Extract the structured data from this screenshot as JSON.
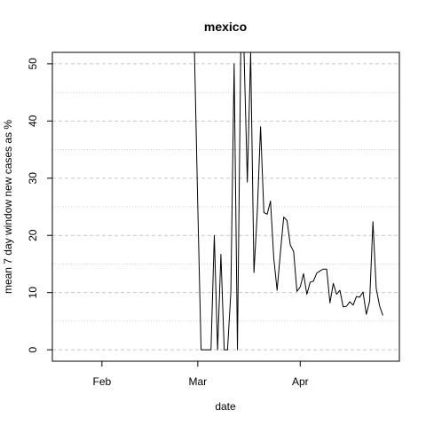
{
  "chart_data": {
    "type": "line",
    "title": "mexico",
    "xlabel": "date",
    "ylabel": "mean  7  day window new cases as %",
    "x_ticks": [
      "2020-02-01",
      "2020-03-01",
      "2020-04-01"
    ],
    "x_tick_labels": [
      "Feb",
      "Mar",
      "Apr"
    ],
    "xlim": [
      "2020-01-17",
      "2020-05-01"
    ],
    "y_ticks": [
      0,
      10,
      20,
      30,
      40,
      50
    ],
    "ylim": [
      -2,
      52
    ],
    "grid": {
      "major": "dashed",
      "minor": "dotted"
    },
    "series": [
      {
        "color": "#000000",
        "points": [
          {
            "x": "2020-02-29",
            "y": 52
          },
          {
            "x": "2020-03-01",
            "y": 25
          },
          {
            "x": "2020-03-02",
            "y": 0
          },
          {
            "x": "2020-03-03",
            "y": 0
          },
          {
            "x": "2020-03-04",
            "y": 0
          },
          {
            "x": "2020-03-05",
            "y": 0
          },
          {
            "x": "2020-03-06",
            "y": 20
          },
          {
            "x": "2020-03-07",
            "y": 0
          },
          {
            "x": "2020-03-08",
            "y": 16.7
          },
          {
            "x": "2020-03-09",
            "y": 0
          },
          {
            "x": "2020-03-10",
            "y": 0
          },
          {
            "x": "2020-03-11",
            "y": 10
          },
          {
            "x": "2020-03-12",
            "y": 50
          },
          {
            "x": "2020-03-13",
            "y": 0
          },
          {
            "x": "2020-03-14",
            "y": 52
          },
          {
            "x": "2020-03-15",
            "y": 52
          },
          {
            "x": "2020-03-16",
            "y": 29.3
          },
          {
            "x": "2020-03-17",
            "y": 52
          },
          {
            "x": "2020-03-18",
            "y": 13.5
          },
          {
            "x": "2020-03-19",
            "y": 24
          },
          {
            "x": "2020-03-20",
            "y": 39
          },
          {
            "x": "2020-03-21",
            "y": 24
          },
          {
            "x": "2020-03-22",
            "y": 23.7
          },
          {
            "x": "2020-03-23",
            "y": 26
          },
          {
            "x": "2020-03-24",
            "y": 16
          },
          {
            "x": "2020-03-25",
            "y": 10.4
          },
          {
            "x": "2020-03-26",
            "y": 17
          },
          {
            "x": "2020-03-27",
            "y": 23.2
          },
          {
            "x": "2020-03-28",
            "y": 22.6
          },
          {
            "x": "2020-03-29",
            "y": 18.3
          },
          {
            "x": "2020-03-30",
            "y": 17.2
          },
          {
            "x": "2020-03-31",
            "y": 10.2
          },
          {
            "x": "2020-04-01",
            "y": 11
          },
          {
            "x": "2020-04-02",
            "y": 13.3
          },
          {
            "x": "2020-04-03",
            "y": 9.7
          },
          {
            "x": "2020-04-04",
            "y": 11.8
          },
          {
            "x": "2020-04-05",
            "y": 12
          },
          {
            "x": "2020-04-06",
            "y": 13.4
          },
          {
            "x": "2020-04-07",
            "y": 13.8
          },
          {
            "x": "2020-04-08",
            "y": 14.1
          },
          {
            "x": "2020-04-09",
            "y": 14.1
          },
          {
            "x": "2020-04-10",
            "y": 8.2
          },
          {
            "x": "2020-04-11",
            "y": 11.6
          },
          {
            "x": "2020-04-12",
            "y": 9.7
          },
          {
            "x": "2020-04-13",
            "y": 10.4
          },
          {
            "x": "2020-04-14",
            "y": 7.5
          },
          {
            "x": "2020-04-15",
            "y": 7.6
          },
          {
            "x": "2020-04-16",
            "y": 8.4
          },
          {
            "x": "2020-04-17",
            "y": 7.8
          },
          {
            "x": "2020-04-18",
            "y": 9.3
          },
          {
            "x": "2020-04-19",
            "y": 9.2
          },
          {
            "x": "2020-04-20",
            "y": 10.1
          },
          {
            "x": "2020-04-21",
            "y": 6.2
          },
          {
            "x": "2020-04-22",
            "y": 8.5
          },
          {
            "x": "2020-04-23",
            "y": 22.4
          },
          {
            "x": "2020-04-24",
            "y": 10.7
          },
          {
            "x": "2020-04-25",
            "y": 7.7
          },
          {
            "x": "2020-04-26",
            "y": 6
          }
        ]
      }
    ]
  }
}
